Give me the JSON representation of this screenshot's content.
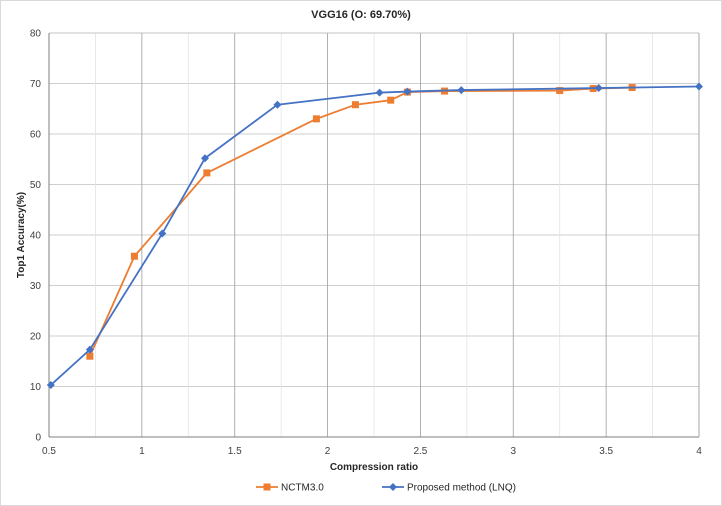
{
  "chart_data": {
    "type": "line",
    "title": "VGG16 (O: 69.70%)",
    "xlabel": "Compression ratio",
    "ylabel": "Top1 Accuracy(%)",
    "xlim": [
      0.5,
      4
    ],
    "ylim": [
      0,
      80
    ],
    "x_ticks": [
      "0.5",
      "1",
      "1.5",
      "2",
      "2.5",
      "3",
      "3.5",
      "4"
    ],
    "y_ticks": [
      "0",
      "10",
      "20",
      "30",
      "40",
      "50",
      "60",
      "70",
      "80"
    ],
    "grid": true,
    "legend_position": "bottom",
    "series": [
      {
        "name": "NCTM3.0",
        "color": "#ED7D31",
        "marker": "square",
        "points": [
          {
            "x": 0.72,
            "y": 16.0
          },
          {
            "x": 0.96,
            "y": 35.8
          },
          {
            "x": 1.35,
            "y": 52.3
          },
          {
            "x": 1.94,
            "y": 63.0
          },
          {
            "x": 2.15,
            "y": 65.8
          },
          {
            "x": 2.34,
            "y": 66.7
          },
          {
            "x": 2.43,
            "y": 68.3
          },
          {
            "x": 2.63,
            "y": 68.5
          },
          {
            "x": 3.25,
            "y": 68.6
          },
          {
            "x": 3.43,
            "y": 69.0
          },
          {
            "x": 3.64,
            "y": 69.2
          }
        ]
      },
      {
        "name": "Proposed method (LNQ)",
        "color": "#4472C4",
        "marker": "diamond",
        "points": [
          {
            "x": 0.51,
            "y": 10.3
          },
          {
            "x": 0.72,
            "y": 17.3
          },
          {
            "x": 1.11,
            "y": 40.3
          },
          {
            "x": 1.34,
            "y": 55.2
          },
          {
            "x": 1.73,
            "y": 65.8
          },
          {
            "x": 2.28,
            "y": 68.2
          },
          {
            "x": 2.43,
            "y": 68.4
          },
          {
            "x": 2.72,
            "y": 68.7
          },
          {
            "x": 3.46,
            "y": 69.1
          },
          {
            "x": 4.0,
            "y": 69.4
          }
        ]
      }
    ]
  }
}
